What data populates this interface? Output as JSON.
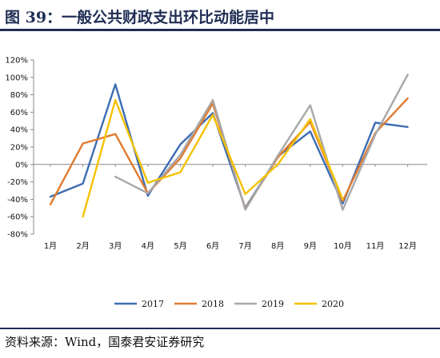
{
  "figure": {
    "title": "图 39：一般公共财政支出环比动能居中",
    "source": "资料来源：Wind，国泰君安证券研究"
  },
  "chart_data": {
    "type": "line",
    "categories": [
      "1月",
      "2月",
      "3月",
      "4月",
      "5月",
      "6月",
      "7月",
      "8月",
      "9月",
      "10月",
      "11月",
      "12月"
    ],
    "yticks": [
      "-80%",
      "-60%",
      "-40%",
      "-20%",
      "0%",
      "20%",
      "40%",
      "60%",
      "80%",
      "100%",
      "120%"
    ],
    "ylim": [
      -80,
      120
    ],
    "ytick_step": 20,
    "grid": false,
    "legend_position": "bottom",
    "series": [
      {
        "name": "2017",
        "color": "#3d6db3",
        "values": [
          -37,
          -22,
          92,
          -36,
          23,
          59,
          -50,
          9,
          38,
          -45,
          48,
          43
        ]
      },
      {
        "name": "2018",
        "color": "#e07b30",
        "values": [
          -46,
          24,
          35,
          -33,
          7,
          70,
          -51,
          8,
          49,
          -42,
          36,
          76
        ]
      },
      {
        "name": "2019",
        "color": "#a8a8a8",
        "values": [
          null,
          null,
          -14,
          -33,
          11,
          74,
          -52,
          10,
          68,
          -52,
          34,
          103
        ]
      },
      {
        "name": "2020",
        "color": "#f5c200",
        "values": [
          null,
          -60,
          74,
          -21,
          -9,
          57,
          -34,
          0,
          52,
          -40,
          null,
          null
        ]
      }
    ]
  }
}
